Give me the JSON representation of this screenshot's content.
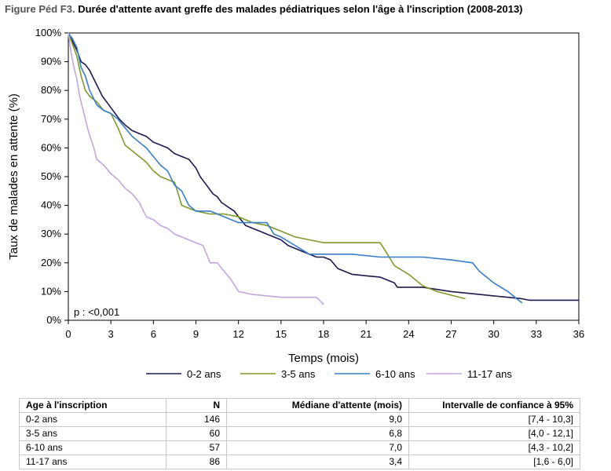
{
  "figure": {
    "label": "Figure Péd F3.",
    "title": "Durée d'attente avant greffe des malades pédiatriques selon l'âge à l'inscription  (2008-2013)"
  },
  "chart_data": {
    "type": "line",
    "title": "Durée d'attente avant greffe des malades pédiatriques selon l'âge à l'inscription  (2008-2013)",
    "xlabel": "Temps (mois)",
    "ylabel": "Taux de malades en attente (%)",
    "xlim": [
      0,
      36
    ],
    "ylim": [
      0,
      100
    ],
    "xticks": [
      0,
      3,
      6,
      9,
      12,
      15,
      18,
      21,
      24,
      27,
      30,
      33,
      36
    ],
    "yticks": [
      0,
      10,
      20,
      30,
      40,
      50,
      60,
      70,
      80,
      90,
      100
    ],
    "xtick_labels": [
      "0",
      "3",
      "6",
      "9",
      "12",
      "15",
      "18",
      "21",
      "24",
      "27",
      "30",
      "33",
      "36"
    ],
    "ytick_labels": [
      "0%",
      "10%",
      "20%",
      "30%",
      "40%",
      "50%",
      "60%",
      "70%",
      "80%",
      "90%",
      "100%"
    ],
    "grid": false,
    "legend_position": "bottom",
    "annotation": "p : <0,001",
    "series": [
      {
        "name": "0-2 ans",
        "color": "#1c1a4d",
        "x": [
          0,
          0.3,
          0.6,
          0.9,
          1.2,
          1.5,
          1.8,
          2.1,
          2.4,
          2.7,
          3.0,
          3.3,
          3.6,
          4.0,
          4.5,
          5.0,
          5.5,
          6.0,
          6.5,
          7.0,
          7.5,
          8.0,
          8.5,
          9.0,
          9.3,
          9.6,
          9.9,
          10.2,
          10.5,
          10.8,
          11.1,
          11.4,
          11.7,
          12.0,
          12.5,
          13.0,
          13.5,
          14.0,
          14.5,
          15.0,
          15.5,
          16.0,
          16.5,
          17.0,
          17.5,
          18.0,
          18.5,
          19.0,
          20.0,
          21.0,
          22.0,
          22.5,
          23.0,
          23.2,
          24.0,
          25.0,
          27.0,
          29.0,
          30.0,
          31.0,
          32.0,
          32.5,
          33.0,
          36.0
        ],
        "y": [
          100,
          97,
          94,
          90,
          89,
          87,
          84,
          81,
          78,
          76,
          74,
          72,
          70,
          68,
          66,
          65,
          64,
          62,
          61,
          60,
          58,
          57,
          56,
          53,
          50,
          48,
          46,
          44,
          43,
          41,
          40,
          39,
          38,
          36,
          33,
          32,
          31,
          30,
          29,
          28,
          26,
          25,
          24,
          23,
          22,
          22,
          21,
          18,
          16,
          15.5,
          15,
          14,
          13,
          11.5,
          11.5,
          11.5,
          10,
          9,
          8.5,
          8,
          7.5,
          7,
          7,
          7
        ]
      },
      {
        "name": "3-5 ans",
        "color": "#7f9a2b",
        "x": [
          0,
          0.3,
          0.6,
          0.9,
          1.2,
          1.5,
          2.0,
          2.5,
          3.0,
          3.5,
          4.0,
          4.5,
          5.0,
          5.5,
          6.0,
          6.5,
          7.0,
          7.5,
          8.0,
          8.5,
          9.0,
          10.0,
          11.0,
          12.0,
          13.0,
          14.0,
          15.0,
          16.0,
          17.0,
          18.0,
          19.0,
          20.0,
          21.0,
          22.0,
          22.5,
          23.0,
          24.0,
          25.0,
          26.0,
          28.0
        ],
        "y": [
          100,
          96,
          92,
          85,
          80,
          78,
          76,
          73,
          72,
          67,
          61,
          59,
          57,
          55,
          52,
          50,
          49,
          48,
          40,
          39,
          38,
          37,
          37,
          36,
          34,
          33,
          31,
          29,
          28,
          27,
          27,
          27,
          27,
          27,
          23,
          19,
          16,
          12,
          10,
          7.5
        ]
      },
      {
        "name": "6-10 ans",
        "color": "#3a7dc9",
        "x": [
          0,
          0.3,
          0.6,
          0.9,
          1.2,
          1.5,
          2.0,
          2.5,
          3.0,
          3.5,
          4.0,
          4.5,
          5.0,
          5.5,
          6.0,
          6.5,
          7.0,
          7.5,
          8.0,
          8.5,
          9.0,
          10.0,
          11.0,
          12.0,
          13.0,
          14.0,
          14.5,
          15.0,
          16.0,
          17.0,
          18.0,
          20.0,
          22.0,
          25.0,
          27.0,
          28.5,
          29.0,
          30.0,
          31.0,
          31.5,
          32.0
        ],
        "y": [
          100,
          98,
          95,
          88,
          85,
          80,
          75,
          73,
          72,
          70,
          67,
          64,
          62,
          60,
          57,
          54,
          52,
          47,
          45,
          40,
          38,
          38,
          36,
          34,
          34,
          34,
          30,
          29,
          26,
          23,
          23,
          23,
          22,
          22,
          21,
          20,
          17,
          13,
          10,
          8,
          6
        ]
      },
      {
        "name": "11-17 ans",
        "color": "#c2a6e0",
        "x": [
          0,
          0.2,
          0.4,
          0.6,
          0.8,
          1.0,
          1.2,
          1.4,
          1.6,
          1.8,
          2.0,
          2.5,
          3.0,
          3.5,
          4.0,
          4.5,
          5.0,
          5.5,
          6.0,
          6.5,
          7.0,
          7.5,
          8.0,
          8.5,
          9.0,
          9.5,
          10.0,
          10.5,
          11.0,
          11.5,
          12.0,
          13.0,
          14.0,
          15.0,
          16.0,
          17.0,
          17.5,
          18.0
        ],
        "y": [
          100,
          93,
          88,
          84,
          78,
          74,
          70,
          66,
          63,
          60,
          56,
          54,
          51,
          49,
          46,
          44,
          41,
          36,
          35,
          33,
          32,
          30,
          29,
          28,
          27,
          26,
          20,
          20,
          17,
          14,
          10,
          9,
          8.5,
          8,
          8,
          8,
          8,
          5.5
        ]
      }
    ]
  },
  "table": {
    "headers": [
      "Age à l'inscription",
      "N",
      "Médiane d'attente (mois)",
      "Intervalle de confiance à 95%"
    ],
    "rows": [
      [
        "0-2 ans",
        "146",
        "9,0",
        "[7,4 - 10,3]"
      ],
      [
        "3-5 ans",
        "60",
        "6,8",
        "[4,0 - 12,1]"
      ],
      [
        "6-10 ans",
        "57",
        "7,0",
        "[4,3 - 10,2]"
      ],
      [
        "11-17 ans",
        "86",
        "3,4",
        "[1,6 - 6,0]"
      ]
    ]
  }
}
